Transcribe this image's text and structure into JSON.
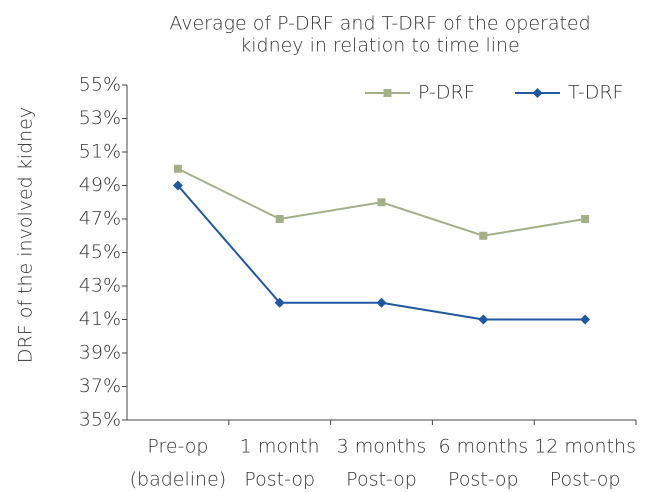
{
  "chart_data": {
    "type": "line",
    "title": [
      "Average of P-DRF and T-DRF of the operated",
      "kidney in relation to time line"
    ],
    "y_label": "DRF of the involved kidney",
    "categories": [
      [
        "Pre-op",
        "(badeline)"
      ],
      [
        "1 month",
        "Post-op"
      ],
      [
        "3 months",
        "Post-op"
      ],
      [
        "6 months",
        "Post-op"
      ],
      [
        "12 months",
        "Post-op"
      ]
    ],
    "series": [
      {
        "name": "P-DRF",
        "color": "#a3b087",
        "marker": "square",
        "values": [
          50,
          47,
          48,
          46,
          47
        ]
      },
      {
        "name": "T-DRF",
        "color": "#1f58a0",
        "marker": "diamond",
        "values": [
          49,
          42,
          42,
          41,
          41
        ]
      }
    ],
    "ylim": [
      35,
      55
    ],
    "yticks": [
      {
        "value": 35,
        "label": "35%"
      },
      {
        "value": 37,
        "label": "37%"
      },
      {
        "value": 39,
        "label": "39%"
      },
      {
        "value": 41,
        "label": "41%"
      },
      {
        "value": 43,
        "label": "43%"
      },
      {
        "value": 45,
        "label": "45%"
      },
      {
        "value": 47,
        "label": "47%"
      },
      {
        "value": 49,
        "label": "49%"
      },
      {
        "value": 51,
        "label": "51%"
      },
      {
        "value": 53,
        "label": "53%"
      },
      {
        "value": 55,
        "label": "55%"
      }
    ],
    "legend": "top-right"
  }
}
